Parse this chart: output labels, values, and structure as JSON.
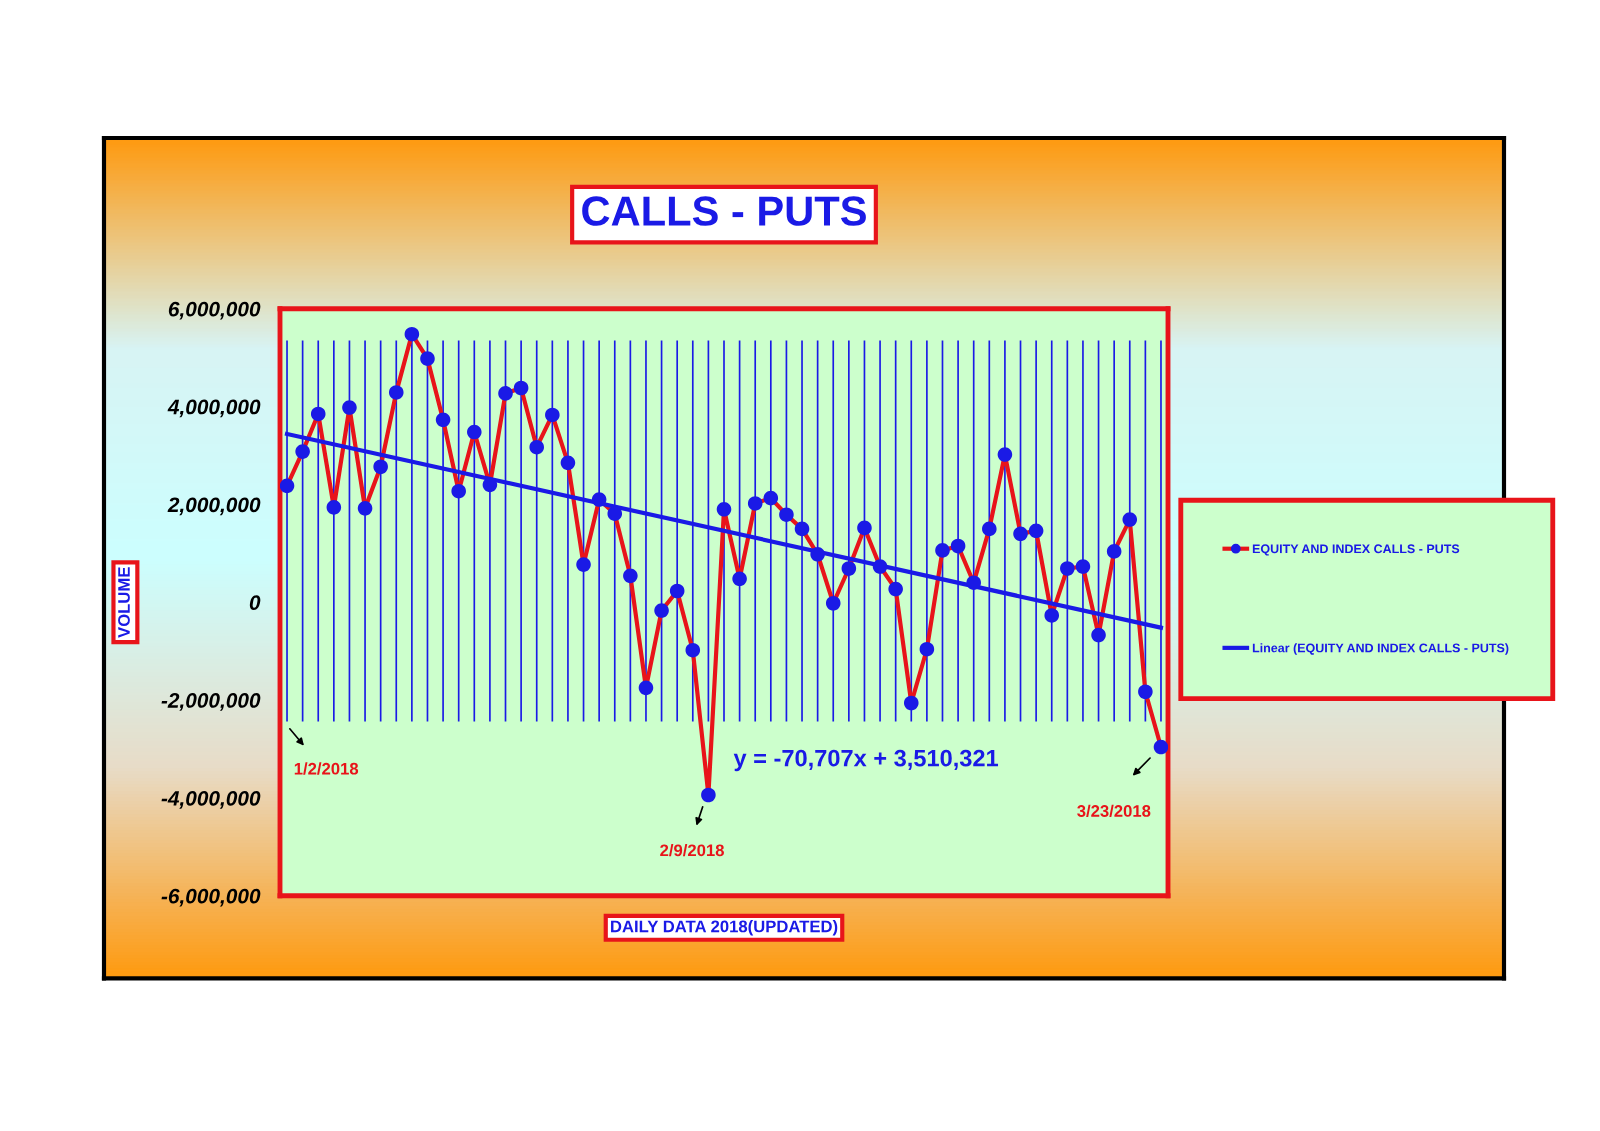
{
  "chart_data": {
    "type": "line",
    "title": "CALLS - PUTS",
    "xlabel": "DAILY DATA 2018(UPDATED)",
    "ylabel": "VOLUME",
    "categories": [
      null,
      null,
      null,
      null,
      null,
      null,
      null,
      null,
      null,
      null,
      null,
      null,
      null,
      null,
      null,
      null,
      null,
      null,
      null,
      null,
      null,
      null,
      null,
      null,
      null,
      null,
      null,
      null,
      null,
      null,
      null,
      null,
      null,
      null,
      null,
      null,
      null,
      null,
      null,
      null,
      null,
      null,
      null,
      null,
      null,
      null,
      null,
      null,
      null,
      null,
      null,
      null,
      null,
      null,
      null,
      null,
      null
    ],
    "series": [
      {
        "name": "EQUITY AND INDEX CALLS - PUTS",
        "color": "#e8141a",
        "colors": [
          "#1a1ae6",
          "#1a1ae6",
          "#1a1ae6",
          "#1a1ae6",
          "#1a1ae6",
          "#1a1ae6",
          "#1a1ae6",
          "#1a1ae6",
          "#1a1ae6",
          "#1a1ae6",
          "#1a1ae6",
          "#1a1ae6",
          "#1a1ae6",
          "#1a1ae6",
          "#1a1ae6",
          "#1a1ae6",
          "#1a1ae6",
          "#1a1ae6",
          "#1a1ae6",
          "#1a1ae6",
          "#1a1ae6",
          "#1a1ae6",
          "#1a1ae6",
          "#1a1ae6",
          "#1a1ae6",
          "#1a1ae6",
          "#1a1ae6",
          "#1a1ae6",
          "#1a1ae6",
          "#1a1ae6",
          "#1a1ae6",
          "#1a1ae6",
          "#1a1ae6",
          "#1a1ae6",
          "#1a1ae6",
          "#1a1ae6",
          "#1a1ae6",
          "#1a1ae6",
          "#1a1ae6",
          "#1a1ae6",
          "#1a1ae6",
          "#1a1ae6",
          "#1a1ae6",
          "#1a1ae6",
          "#1a1ae6",
          "#1a1ae6",
          "#1a1ae6",
          "#1a1ae6",
          "#1a1ae6",
          "#1a1ae6",
          "#1a1ae6",
          "#1a1ae6",
          "#1a1ae6",
          "#1a1ae6",
          "#1a1ae6",
          "#1a1ae6",
          "#1a1ae6"
        ],
        "marker": "circle",
        "line_style": "solid",
        "values": [
          2380000,
          3080000,
          3850000,
          1940000,
          3980000,
          1920000,
          2770000,
          4290000,
          5480000,
          4980000,
          3730000,
          2270000,
          3480000,
          2400000,
          4270000,
          4380000,
          3170000,
          3830000,
          2850000,
          770000,
          2100000,
          1810000,
          540000,
          -1750000,
          -170000,
          230000,
          -980000,
          -3940000,
          1900000,
          480000,
          2020000,
          2130000,
          1790000,
          1500000,
          980000,
          -20000,
          690000,
          1520000,
          730000,
          270000,
          -2060000,
          -960000,
          1060000,
          1150000,
          400000,
          1500000,
          3020000,
          1400000,
          1460000,
          -270000,
          690000,
          730000,
          -670000,
          1040000,
          1690000,
          -1830000,
          -2960000
        ]
      },
      {
        "name": "Linear (EQUITY AND INDEX CALLS - PUTS)",
        "type": "line",
        "color": "#1a1ae6",
        "marker": "none",
        "line_style": "solid",
        "values": [
          3440000,
          null,
          null,
          null,
          null,
          null,
          null,
          null,
          null,
          null,
          null,
          null,
          null,
          null,
          null,
          null,
          null,
          null,
          null,
          null,
          null,
          null,
          null,
          null,
          null,
          null,
          null,
          null,
          null,
          null,
          null,
          null,
          null,
          null,
          null,
          null,
          null,
          null,
          null,
          null,
          null,
          null,
          null,
          null,
          null,
          null,
          null,
          null,
          null,
          null,
          null,
          null,
          null,
          null,
          null,
          null,
          -520000
        ]
      }
    ],
    "ylim": [
      -6000000,
      6000000
    ],
    "yticks": [
      {
        "value": -6000000,
        "label": "-6,000,000"
      },
      {
        "value": -4000000,
        "label": "-4,000,000"
      },
      {
        "value": -2000000,
        "label": "-2,000,000"
      },
      {
        "value": 0,
        "label": "0"
      },
      {
        "value": 2000000,
        "label": "2,000,000"
      },
      {
        "value": 4000000,
        "label": "4,000,000"
      },
      {
        "value": 6000000,
        "label": "6,000,000"
      }
    ],
    "grid": "x",
    "legend": "right",
    "annotations": [
      "1/2/2018",
      "2/9/2018",
      "3/23/2018",
      "y = -70,707x + 3,510,321"
    ]
  }
}
